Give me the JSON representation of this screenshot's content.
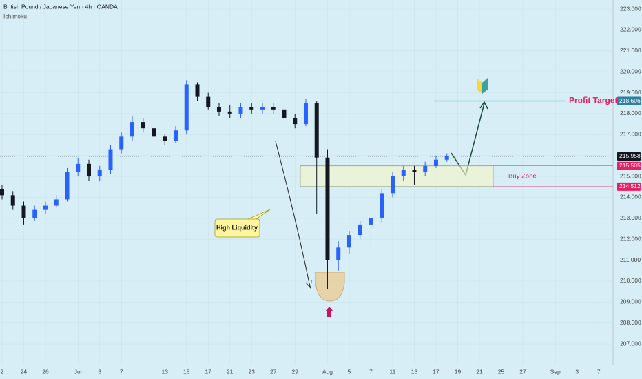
{
  "header": {
    "title": "British Pound / Japanese Yen · 4h · OANDA",
    "indicator": "Ichimoku"
  },
  "chart_data": {
    "type": "candlestick",
    "x": [
      0,
      1,
      2,
      3,
      4,
      5,
      6,
      7,
      8,
      9,
      10,
      11,
      12,
      13,
      14,
      15,
      16,
      17,
      18,
      19,
      20,
      21,
      22,
      23,
      24,
      25,
      26,
      27,
      28,
      29,
      30,
      31,
      32,
      33,
      34,
      35,
      36,
      37,
      38,
      39,
      40,
      41
    ],
    "open": [
      214.4,
      214.1,
      213.6,
      213.0,
      213.4,
      213.6,
      213.9,
      215.2,
      215.6,
      215.0,
      215.3,
      216.3,
      216.9,
      217.6,
      217.3,
      216.9,
      216.7,
      217.2,
      219.4,
      218.8,
      218.3,
      218.1,
      218.0,
      218.3,
      218.2,
      218.3,
      218.2,
      217.8,
      217.5,
      218.5,
      215.9,
      211.0,
      211.6,
      212.2,
      212.7,
      213.0,
      214.2,
      215.0,
      215.3,
      215.2,
      215.5,
      215.8
    ],
    "high": [
      214.6,
      214.3,
      213.8,
      213.6,
      213.8,
      214.1,
      215.4,
      215.9,
      215.8,
      215.5,
      216.5,
      217.1,
      217.9,
      217.8,
      217.4,
      217.0,
      217.4,
      219.6,
      219.5,
      219.0,
      218.5,
      218.4,
      218.5,
      218.5,
      218.5,
      218.5,
      218.4,
      218.0,
      218.7,
      218.6,
      216.3,
      211.9,
      212.4,
      212.9,
      213.3,
      214.4,
      215.2,
      215.5,
      215.5,
      215.7,
      216.0,
      216.1
    ],
    "low": [
      213.9,
      213.4,
      212.7,
      212.9,
      213.2,
      213.5,
      213.8,
      215.0,
      214.8,
      214.8,
      215.1,
      216.1,
      216.7,
      217.1,
      216.7,
      216.5,
      216.6,
      217.0,
      218.6,
      218.2,
      217.9,
      217.8,
      217.8,
      218.0,
      218.0,
      218.0,
      217.7,
      217.3,
      217.4,
      213.2,
      209.6,
      210.5,
      211.3,
      212.0,
      211.5,
      212.8,
      214.0,
      214.8,
      214.6,
      215.0,
      215.4,
      215.7
    ],
    "close": [
      214.1,
      213.6,
      213.0,
      213.4,
      213.6,
      213.9,
      215.2,
      215.6,
      215.0,
      215.3,
      216.3,
      216.9,
      217.6,
      217.3,
      216.9,
      216.7,
      217.2,
      219.4,
      218.8,
      218.3,
      218.1,
      218.0,
      218.3,
      218.2,
      218.3,
      218.2,
      217.8,
      217.5,
      218.5,
      215.9,
      211.0,
      211.6,
      212.2,
      212.7,
      213.0,
      214.2,
      215.0,
      215.3,
      215.2,
      215.5,
      215.8,
      215.96
    ],
    "up_color": "#2962ff",
    "down_color": "#131722",
    "xlim": [
      -0.19,
      56.32
    ],
    "xticks": [
      {
        "value": 0,
        "label": "2"
      },
      {
        "value": 2,
        "label": "24"
      },
      {
        "value": 4,
        "label": "26"
      },
      {
        "value": 7,
        "label": "Jul"
      },
      {
        "value": 9,
        "label": "3"
      },
      {
        "value": 11,
        "label": "7"
      },
      {
        "value": 15,
        "label": "13"
      },
      {
        "value": 17,
        "label": "15"
      },
      {
        "value": 19,
        "label": "17"
      },
      {
        "value": 21,
        "label": "21"
      },
      {
        "value": 23,
        "label": "23"
      },
      {
        "value": 25,
        "label": "27"
      },
      {
        "value": 27,
        "label": "29"
      },
      {
        "value": 30,
        "label": "Aug"
      },
      {
        "value": 32,
        "label": "5"
      },
      {
        "value": 34,
        "label": "7"
      },
      {
        "value": 36,
        "label": "11"
      },
      {
        "value": 38,
        "label": "13"
      },
      {
        "value": 40,
        "label": "17"
      },
      {
        "value": 42,
        "label": "19"
      },
      {
        "value": 44,
        "label": "21"
      },
      {
        "value": 46,
        "label": "25"
      },
      {
        "value": 48,
        "label": "27"
      },
      {
        "value": 51,
        "label": "Sep"
      },
      {
        "value": 53,
        "label": "3"
      },
      {
        "value": 55,
        "label": "7"
      }
    ],
    "ylim": [
      205.98,
      223.43
    ],
    "yticks": [
      {
        "value": 207,
        "label": "207.000"
      },
      {
        "value": 208,
        "label": "208.000"
      },
      {
        "value": 209,
        "label": "209.000"
      },
      {
        "value": 210,
        "label": "210.000"
      },
      {
        "value": 211,
        "label": "211.000"
      },
      {
        "value": 212,
        "label": "212.000"
      },
      {
        "value": 213,
        "label": "213.000"
      },
      {
        "value": 214,
        "label": "214.000"
      },
      {
        "value": 215,
        "label": "215.000"
      },
      {
        "value": 216,
        "label": "216.000"
      },
      {
        "value": 217,
        "label": "217.000"
      },
      {
        "value": 218,
        "label": "218.000"
      },
      {
        "value": 219,
        "label": "219.000"
      },
      {
        "value": 220,
        "label": "220.000"
      },
      {
        "value": 221,
        "label": "221.000"
      },
      {
        "value": 222,
        "label": "222.000"
      },
      {
        "value": 223,
        "label": "223.000"
      }
    ],
    "current_price": 215.958,
    "profit_target": {
      "label": "Profit Target",
      "value": 218.606
    },
    "buy_zone": {
      "label": "Buy Zone",
      "top": 215.505,
      "bottom": 214.512
    },
    "annotation": "High Liquidity"
  }
}
